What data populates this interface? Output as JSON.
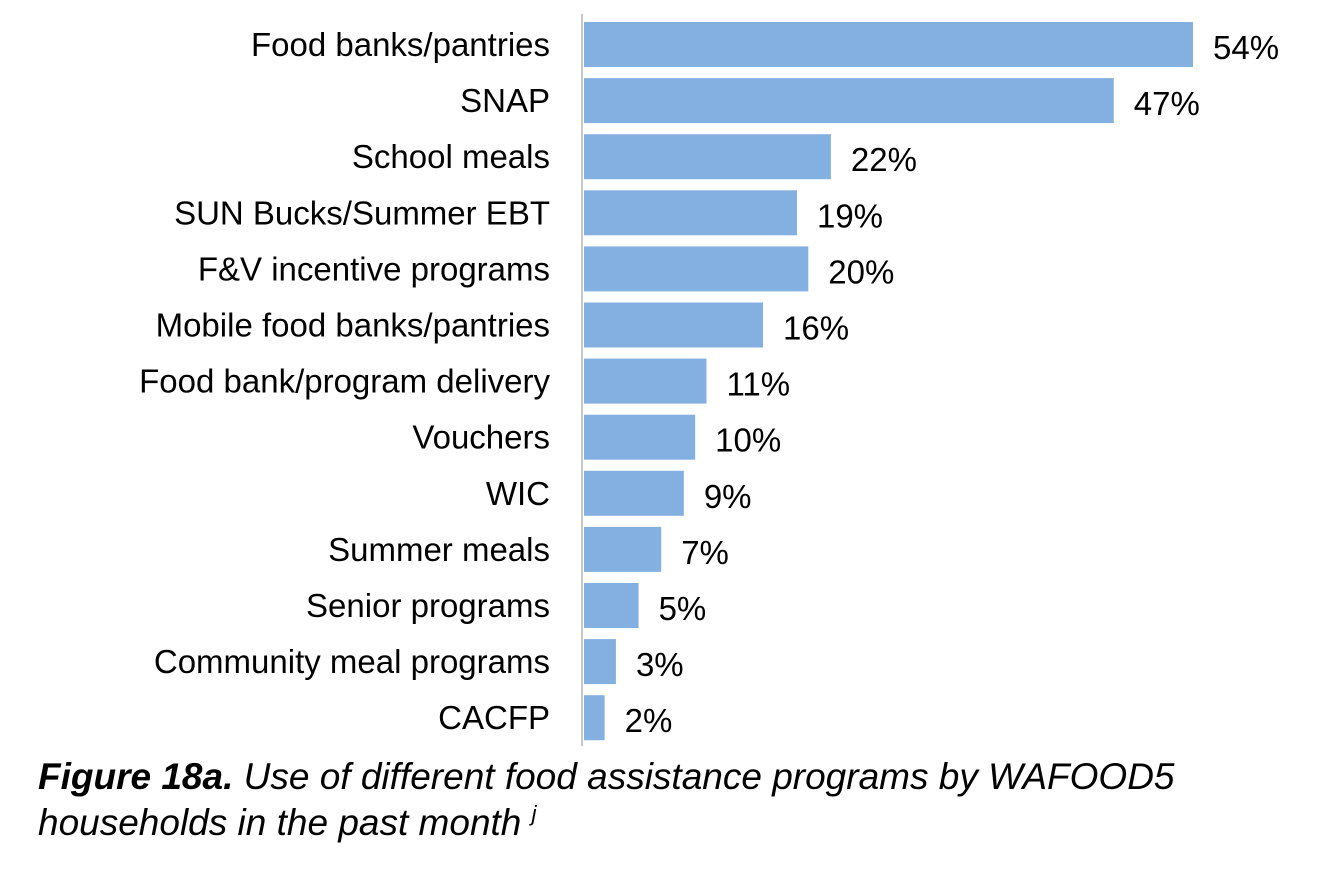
{
  "caption": {
    "figure_label": "Figure 18a.",
    "text": "Use of different food assistance programs by WAFOOD5 households in the past month",
    "footnote_marker": "j"
  },
  "colors": {
    "bar": "#83b0e1",
    "axis": "#c8c8c8"
  },
  "chart_data": {
    "type": "bar",
    "orientation": "horizontal",
    "categories": [
      "Food banks/pantries",
      "SNAP",
      "School meals",
      "SUN Bucks/Summer EBT",
      "F&V incentive programs",
      "Mobile food banks/pantries",
      "Food bank/program delivery",
      "Vouchers",
      "WIC",
      "Summer meals",
      "Senior programs",
      "Community meal programs",
      "CACFP"
    ],
    "values": [
      54,
      47,
      22,
      19,
      20,
      16,
      11,
      10,
      9,
      7,
      5,
      3,
      2
    ],
    "data_labels": [
      "54%",
      "47%",
      "22%",
      "19%",
      "20%",
      "16%",
      "11%",
      "10%",
      "9%",
      "7%",
      "5%",
      "3%",
      "2%"
    ],
    "unit": "%",
    "xlim": [
      0,
      54
    ],
    "grid": false,
    "legend": "none"
  }
}
